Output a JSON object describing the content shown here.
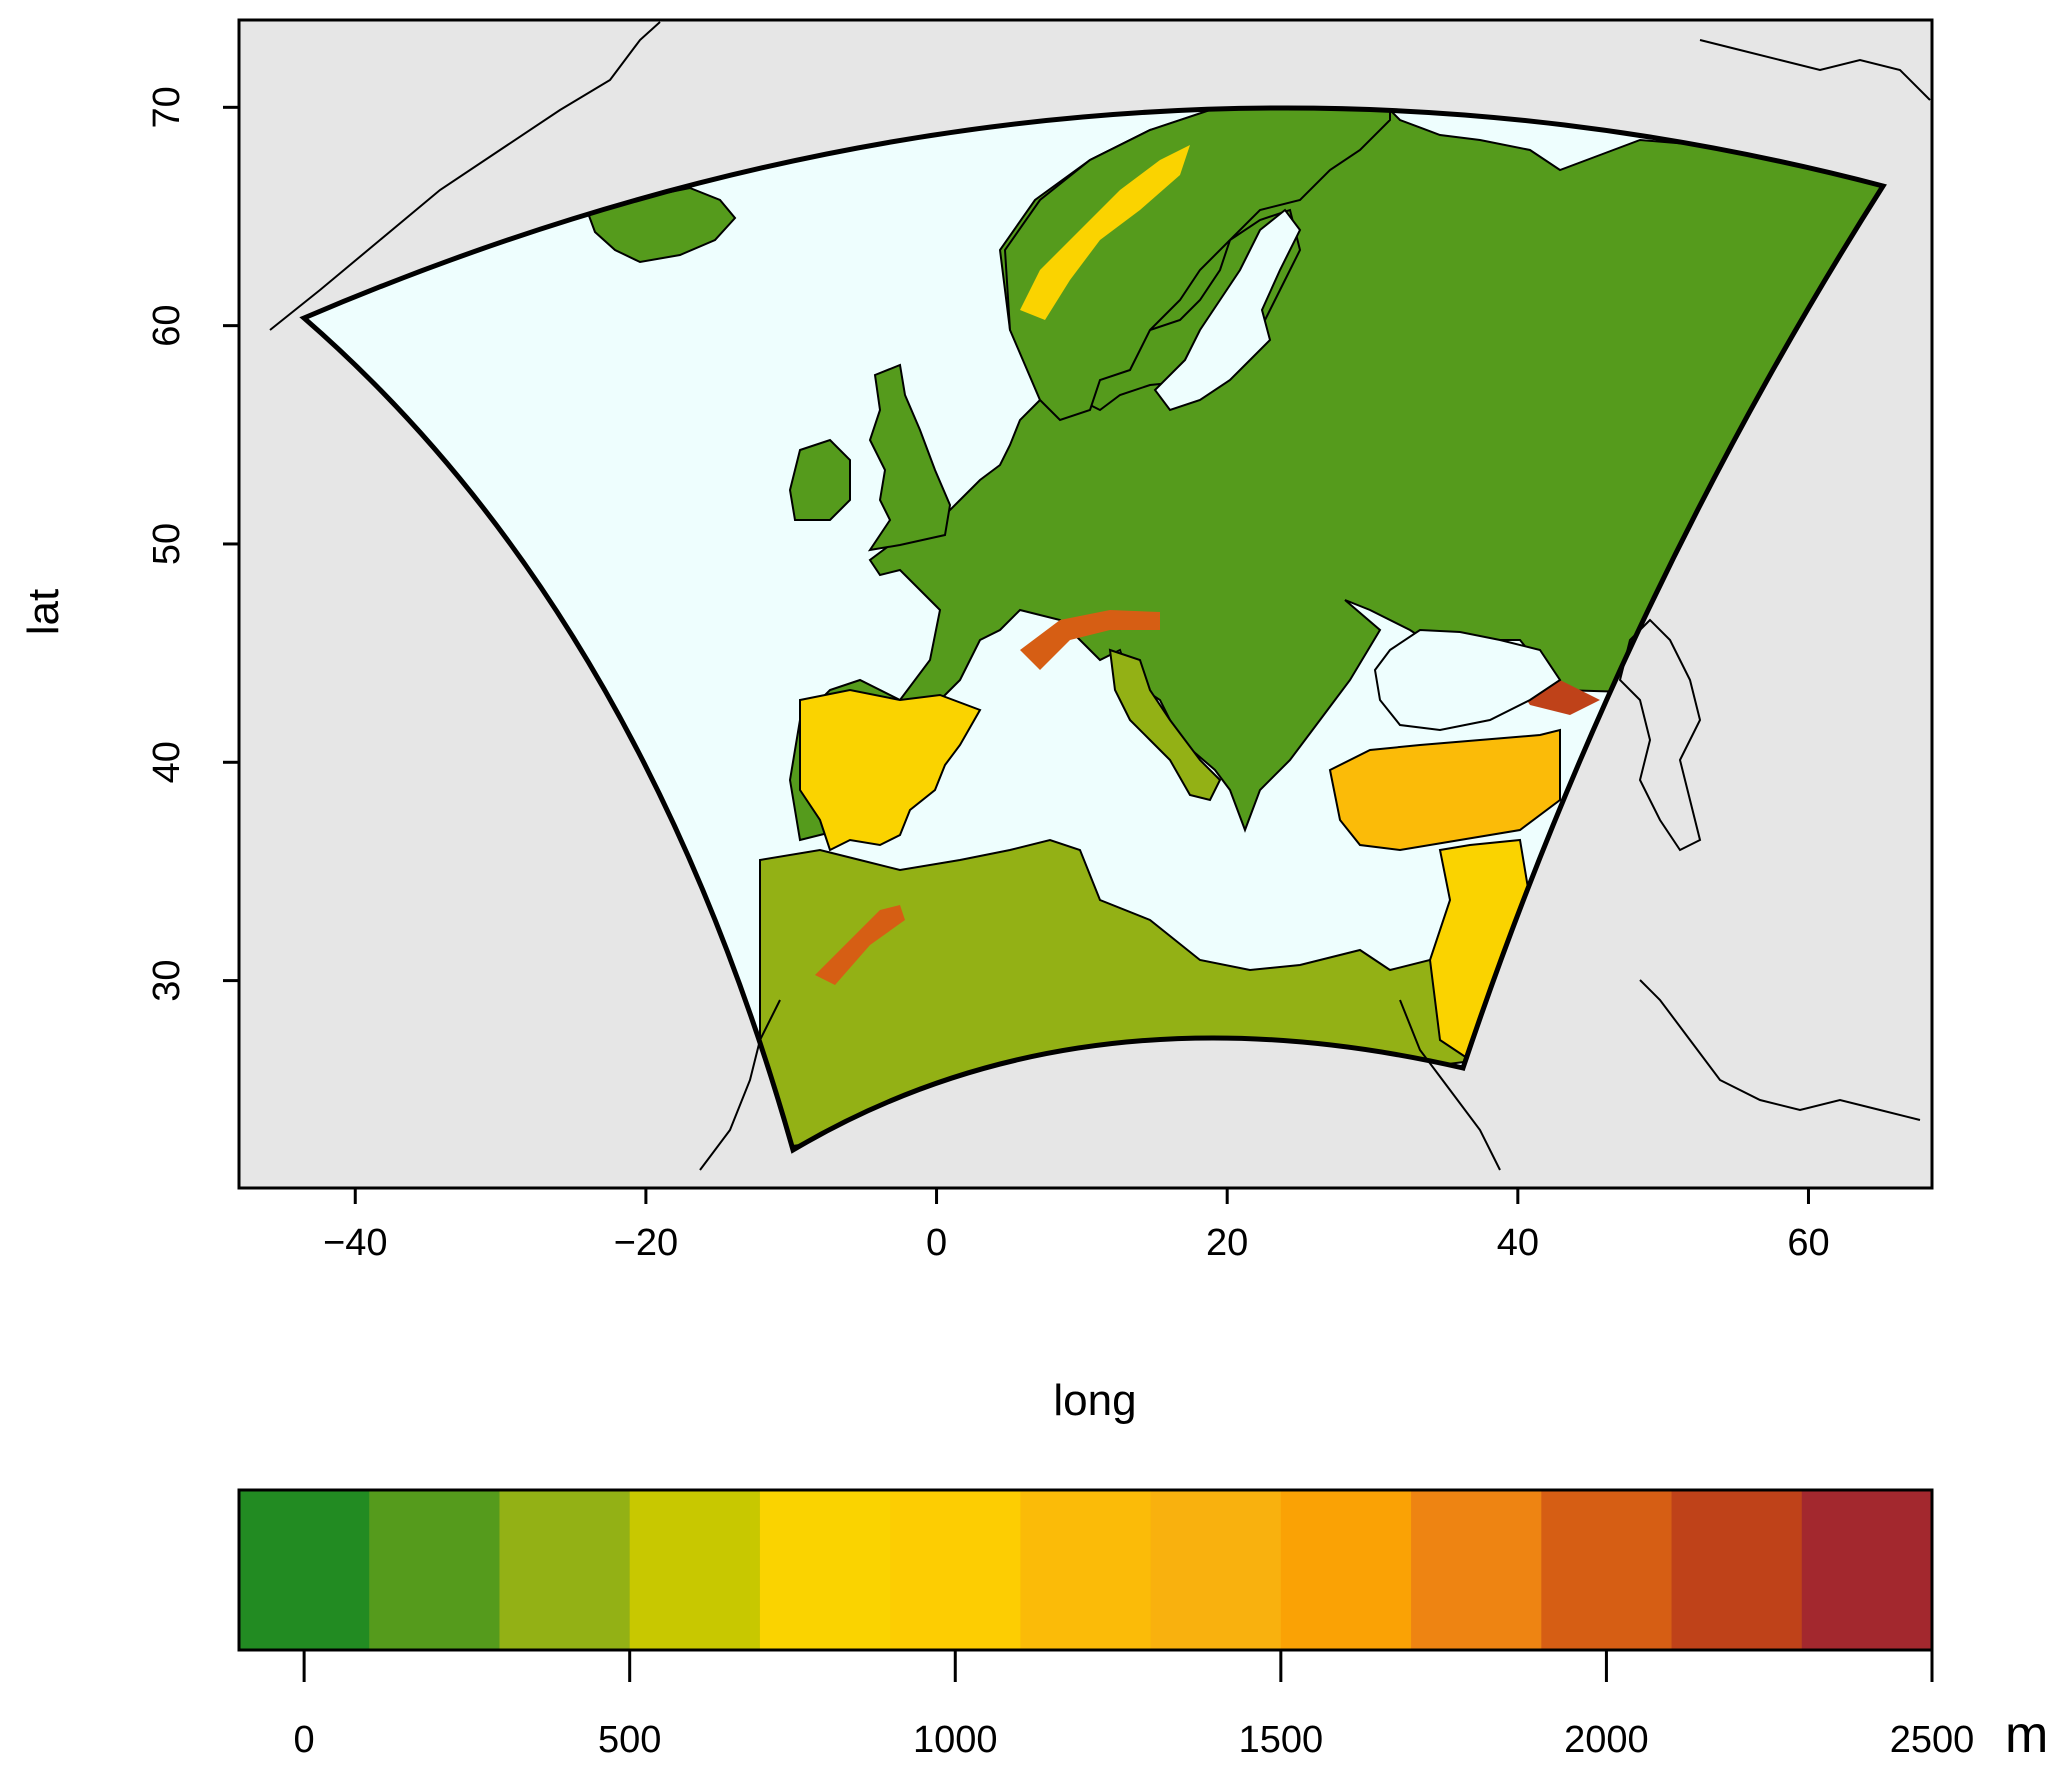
{
  "map": {
    "xlabel": "long",
    "ylabel": "lat",
    "x_ticks": [
      "−40",
      "−20",
      "0",
      "20",
      "40",
      "60"
    ],
    "x_tick_values": [
      -40,
      -20,
      0,
      20,
      40,
      60
    ],
    "y_ticks": [
      "30",
      "40",
      "50",
      "60",
      "70"
    ],
    "y_tick_values": [
      30,
      40,
      50,
      60,
      70
    ],
    "xlim": [
      -48,
      68.5
    ],
    "ylim": [
      20.5,
      74
    ],
    "region": "Europe",
    "background_color": "#e6e6e6",
    "sea_color": "#eefefe",
    "domain_corners": [
      [
        -43.5,
        60.5
      ],
      [
        65,
        67
      ],
      [
        37,
        26
      ],
      [
        -10,
        22.5
      ]
    ]
  },
  "colorbar": {
    "unit": "m",
    "tick_labels": [
      "0",
      "500",
      "1000",
      "1500",
      "2000",
      "2500"
    ],
    "tick_values": [
      0,
      500,
      1000,
      1500,
      2000,
      2500
    ],
    "range": [
      -100,
      2500
    ],
    "bin_edges": [
      -100,
      100,
      300,
      500,
      700,
      900,
      1100,
      1300,
      1500,
      1700,
      1900,
      2100,
      2300,
      2500
    ],
    "colors": [
      "#228b22",
      "#559b1c",
      "#93b115",
      "#c8c800",
      "#fad300",
      "#fdcd02",
      "#fbbb08",
      "#f9b10e",
      "#faa205",
      "#ee8412",
      "#d65e14",
      "#bf4219",
      "#a3282e"
    ]
  }
}
